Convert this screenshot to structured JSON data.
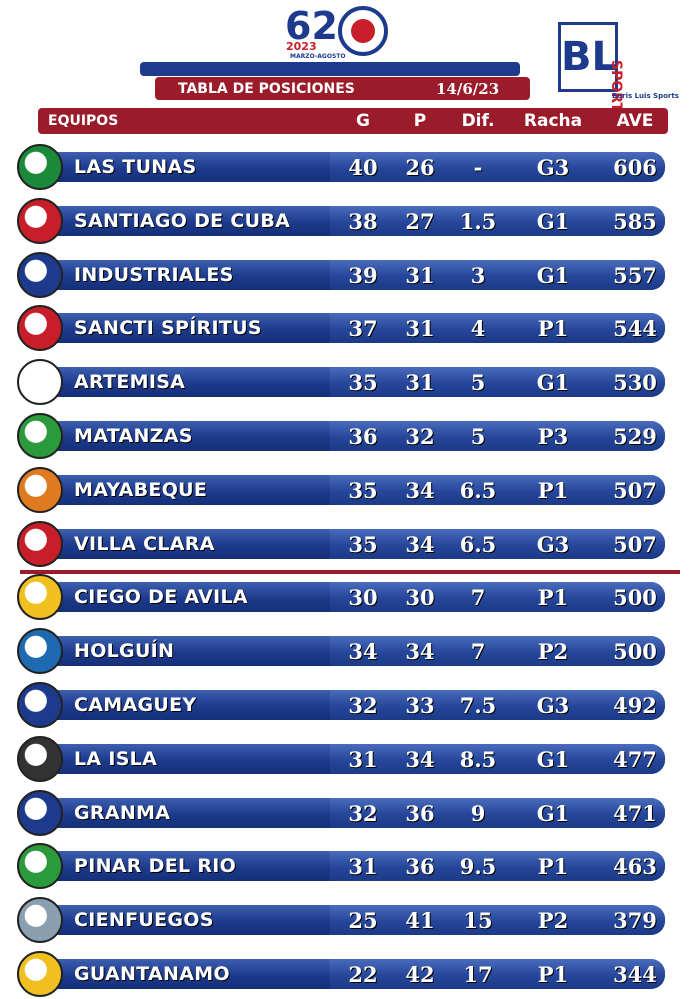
{
  "header": {
    "logo_number": "62",
    "year": "2023",
    "dates": "MARZO-AGOSTO",
    "brand": "BL",
    "brand_sub": "SPORTS",
    "brand_name": "Boris Luis Sports",
    "title": "TABLA DE POSICIONES",
    "date": "14/6/23"
  },
  "table": {
    "columns": [
      "EQUIPOS",
      "G",
      "P",
      "Dif.",
      "Racha",
      "AVE"
    ],
    "rows": [
      [
        "LAS TUNAS",
        40,
        26,
        "-",
        "G3",
        606
      ],
      [
        "SANTIAGO DE CUBA",
        38,
        27,
        1.5,
        "G1",
        585
      ],
      [
        "INDUSTRIALES",
        39,
        31,
        3,
        "G1",
        557
      ],
      [
        "SANCTI SPÍRITUS",
        37,
        31,
        4,
        "P1",
        544
      ],
      [
        "ARTEMISA",
        35,
        31,
        5,
        "G1",
        530
      ],
      [
        "MATANZAS",
        36,
        32,
        5,
        "P3",
        529
      ],
      [
        "MAYABEQUE",
        35,
        34,
        6.5,
        "P1",
        507
      ],
      [
        "VILLA CLARA",
        35,
        34,
        6.5,
        "G3",
        507
      ],
      [
        "CIEGO DE AVILA",
        30,
        30,
        7,
        "P1",
        500
      ],
      [
        "HOLGUÍN",
        34,
        34,
        7,
        "P2",
        500
      ],
      [
        "CAMAGUEY",
        32,
        33,
        7.5,
        "G3",
        492
      ],
      [
        "LA ISLA",
        31,
        34,
        8.5,
        "G1",
        477
      ],
      [
        "GRANMA",
        32,
        36,
        9,
        "G1",
        471
      ],
      [
        "PINAR DEL RIO",
        31,
        36,
        9.5,
        "P1",
        463
      ],
      [
        "CIENFUEGOS",
        25,
        41,
        15,
        "P2",
        379
      ],
      [
        "GUANTANAMO",
        22,
        42,
        17,
        "P1",
        344
      ]
    ]
  }
}
